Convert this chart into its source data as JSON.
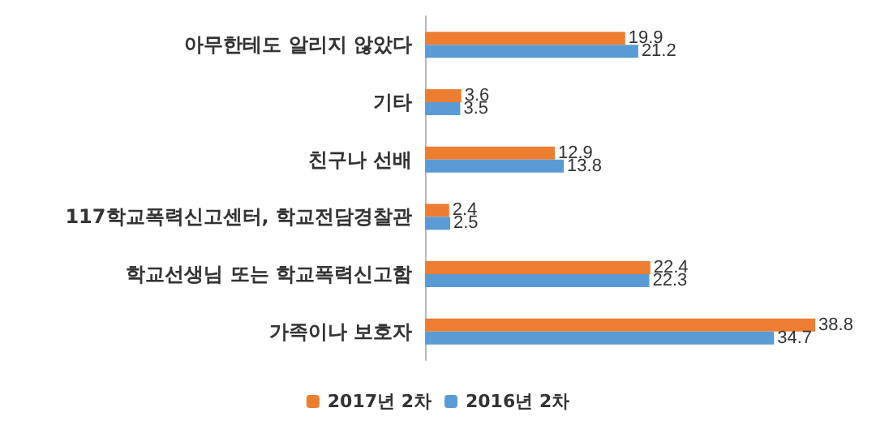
{
  "chart_data": {
    "type": "bar",
    "orientation": "horizontal",
    "categories": [
      "아무한테도 알리지 않았다",
      "기타",
      "친구나 선배",
      "117학교폭력신고센터, 학교전담경찰관",
      "학교선생님 또는 학교폭력신고함",
      "가족이나 보호자"
    ],
    "series": [
      {
        "name": "2017년 2차",
        "color": "#ed7d31",
        "values": [
          19.9,
          3.6,
          12.9,
          2.4,
          22.4,
          38.8
        ]
      },
      {
        "name": "2016년 2차",
        "color": "#5b9bd5",
        "values": [
          21.2,
          3.5,
          13.8,
          2.5,
          22.3,
          34.7
        ]
      }
    ],
    "data_labels": true,
    "legend": "bottom",
    "tick_labels": "y"
  }
}
